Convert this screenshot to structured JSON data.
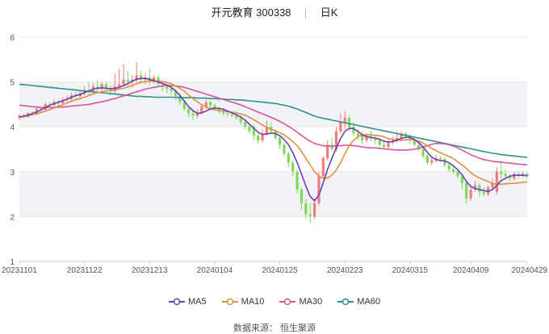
{
  "title_name": "开元教育",
  "title_code": "300338",
  "title_period": "日K",
  "source": "数据来源：  恒生聚源",
  "colors": {
    "up": "#f27b7b",
    "down": "#7ed957",
    "ma5": "#6a3fb8",
    "ma10": "#e09040",
    "ma30": "#d9549a",
    "ma60": "#2f8f8f",
    "band": "#f2f3f7",
    "grid": "#e6e6e6"
  },
  "chart_data": {
    "type": "candlestick",
    "ylim": [
      1,
      6
    ],
    "yticks": [
      "1",
      "2",
      "3",
      "4",
      "5",
      "6"
    ],
    "xticks": [
      "20231101",
      "20231122",
      "20231213",
      "20240104",
      "20240125",
      "20240223",
      "20240315",
      "20240409",
      "20240429"
    ],
    "n_sessions": 118,
    "xtick_index": [
      0,
      15,
      30,
      45,
      60,
      75,
      90,
      104,
      117
    ],
    "legend": [
      "MA5",
      "MA10",
      "MA30",
      "MA60"
    ],
    "candles": [
      [
        4.2,
        4.25,
        4.15,
        4.28
      ],
      [
        4.25,
        4.22,
        4.18,
        4.3
      ],
      [
        4.22,
        4.3,
        4.2,
        4.33
      ],
      [
        4.3,
        4.28,
        4.24,
        4.35
      ],
      [
        4.28,
        4.4,
        4.26,
        4.45
      ],
      [
        4.4,
        4.38,
        4.33,
        4.46
      ],
      [
        4.38,
        4.5,
        4.35,
        4.55
      ],
      [
        4.5,
        4.48,
        4.43,
        4.56
      ],
      [
        4.48,
        4.55,
        4.45,
        4.6
      ],
      [
        4.55,
        4.52,
        4.47,
        4.6
      ],
      [
        4.52,
        4.6,
        4.48,
        4.66
      ],
      [
        4.6,
        4.62,
        4.55,
        4.7
      ],
      [
        4.62,
        4.7,
        4.58,
        4.76
      ],
      [
        4.7,
        4.68,
        4.62,
        4.78
      ],
      [
        4.68,
        4.75,
        4.65,
        4.82
      ],
      [
        4.75,
        4.8,
        4.7,
        4.9
      ],
      [
        4.8,
        4.78,
        4.72,
        4.98
      ],
      [
        4.78,
        4.9,
        4.75,
        4.98
      ],
      [
        4.9,
        4.85,
        4.8,
        5.05
      ],
      [
        4.85,
        4.95,
        4.8,
        5.0
      ],
      [
        4.95,
        4.85,
        4.8,
        5.0
      ],
      [
        4.85,
        4.8,
        4.7,
        4.92
      ],
      [
        4.8,
        4.9,
        4.75,
        5.2
      ],
      [
        4.9,
        4.95,
        4.85,
        5.3
      ],
      [
        4.95,
        5.05,
        4.9,
        5.4
      ],
      [
        5.05,
        5.0,
        4.92,
        5.25
      ],
      [
        5.0,
        5.05,
        4.88,
        5.15
      ],
      [
        5.05,
        5.15,
        5.0,
        5.45
      ],
      [
        5.15,
        5.05,
        4.98,
        5.25
      ],
      [
        5.05,
        5.1,
        4.95,
        5.2
      ],
      [
        5.1,
        5.0,
        4.92,
        5.3
      ],
      [
        5.0,
        5.1,
        4.95,
        5.15
      ],
      [
        5.1,
        4.95,
        4.88,
        5.15
      ],
      [
        4.95,
        4.9,
        4.8,
        5.0
      ],
      [
        4.9,
        4.85,
        4.75,
        4.95
      ],
      [
        4.85,
        4.8,
        4.72,
        4.9
      ],
      [
        4.8,
        4.7,
        4.6,
        4.85
      ],
      [
        4.7,
        4.55,
        4.48,
        4.75
      ],
      [
        4.55,
        4.4,
        4.35,
        4.6
      ],
      [
        4.4,
        4.3,
        4.2,
        4.45
      ],
      [
        4.3,
        4.25,
        4.15,
        4.38
      ],
      [
        4.25,
        4.3,
        4.2,
        4.4
      ],
      [
        4.3,
        4.45,
        4.28,
        4.5
      ],
      [
        4.45,
        4.55,
        4.4,
        4.62
      ],
      [
        4.55,
        4.48,
        4.4,
        4.6
      ],
      [
        4.48,
        4.4,
        4.35,
        4.52
      ],
      [
        4.4,
        4.35,
        4.28,
        4.45
      ],
      [
        4.35,
        4.3,
        4.25,
        4.42
      ],
      [
        4.3,
        4.28,
        4.22,
        4.35
      ],
      [
        4.28,
        4.25,
        4.2,
        4.33
      ],
      [
        4.25,
        4.2,
        4.15,
        4.3
      ],
      [
        4.2,
        4.1,
        4.05,
        4.25
      ],
      [
        4.1,
        4.0,
        3.95,
        4.15
      ],
      [
        4.0,
        3.9,
        3.85,
        4.05
      ],
      [
        4.0,
        3.8,
        3.7,
        4.05
      ],
      [
        3.8,
        3.7,
        3.62,
        3.88
      ],
      [
        3.7,
        3.85,
        3.65,
        3.95
      ],
      [
        3.85,
        4.0,
        3.8,
        4.15
      ],
      [
        4.0,
        3.9,
        3.85,
        4.1
      ],
      [
        3.9,
        3.75,
        3.7,
        3.95
      ],
      [
        3.75,
        3.6,
        3.5,
        3.8
      ],
      [
        3.6,
        3.4,
        3.35,
        3.65
      ],
      [
        3.4,
        3.2,
        3.1,
        3.45
      ],
      [
        3.2,
        3.0,
        2.9,
        3.25
      ],
      [
        3.0,
        2.6,
        2.5,
        3.05
      ],
      [
        2.6,
        2.3,
        2.15,
        2.65
      ],
      [
        2.3,
        2.05,
        1.95,
        2.4
      ],
      [
        2.05,
        2.0,
        1.85,
        2.3
      ],
      [
        2.0,
        2.3,
        1.95,
        2.4
      ],
      [
        2.3,
        2.9,
        2.25,
        3.0
      ],
      [
        2.9,
        3.3,
        2.85,
        3.35
      ],
      [
        3.3,
        3.6,
        3.25,
        3.7
      ],
      [
        3.6,
        3.5,
        3.45,
        3.75
      ],
      [
        3.5,
        3.9,
        3.45,
        4.0
      ],
      [
        3.9,
        4.1,
        3.85,
        4.3
      ],
      [
        4.1,
        4.2,
        3.95,
        4.35
      ],
      [
        4.2,
        4.0,
        3.9,
        4.25
      ],
      [
        4.0,
        3.85,
        3.8,
        4.1
      ],
      [
        3.85,
        3.8,
        3.7,
        3.95
      ],
      [
        3.8,
        3.7,
        3.62,
        3.9
      ],
      [
        3.7,
        3.8,
        3.65,
        3.85
      ],
      [
        3.8,
        3.75,
        3.68,
        3.9
      ],
      [
        3.75,
        3.7,
        3.6,
        3.82
      ],
      [
        3.7,
        3.6,
        3.55,
        3.75
      ],
      [
        3.6,
        3.55,
        3.5,
        3.68
      ],
      [
        3.55,
        3.65,
        3.5,
        3.72
      ],
      [
        3.65,
        3.7,
        3.6,
        3.78
      ],
      [
        3.7,
        3.75,
        3.65,
        3.9
      ],
      [
        3.75,
        3.85,
        3.7,
        3.9
      ],
      [
        3.85,
        3.8,
        3.72,
        3.88
      ],
      [
        3.8,
        3.7,
        3.62,
        3.85
      ],
      [
        3.7,
        3.6,
        3.55,
        3.75
      ],
      [
        3.6,
        3.5,
        3.45,
        3.65
      ],
      [
        3.5,
        3.35,
        3.3,
        3.55
      ],
      [
        3.35,
        3.2,
        3.15,
        3.4
      ],
      [
        3.2,
        3.25,
        3.15,
        3.35
      ],
      [
        3.25,
        3.3,
        3.2,
        3.38
      ],
      [
        3.3,
        3.28,
        3.2,
        3.35
      ],
      [
        3.28,
        3.15,
        3.1,
        3.32
      ],
      [
        3.15,
        3.05,
        3.0,
        3.2
      ],
      [
        3.05,
        3.0,
        2.95,
        3.12
      ],
      [
        3.0,
        2.9,
        2.85,
        3.05
      ],
      [
        2.9,
        2.75,
        2.6,
        2.95
      ],
      [
        2.75,
        2.4,
        2.3,
        2.8
      ],
      [
        2.4,
        2.6,
        2.35,
        2.7
      ],
      [
        2.6,
        2.7,
        2.55,
        2.8
      ],
      [
        2.7,
        2.55,
        2.45,
        2.75
      ],
      [
        2.55,
        2.5,
        2.45,
        2.65
      ],
      [
        2.5,
        2.65,
        2.45,
        2.7
      ],
      [
        2.65,
        2.75,
        2.6,
        2.85
      ],
      [
        2.55,
        3.0,
        2.5,
        3.1
      ],
      [
        3.0,
        2.95,
        2.85,
        3.25
      ],
      [
        2.95,
        2.9,
        2.82,
        3.05
      ],
      [
        2.9,
        2.85,
        2.8,
        2.95
      ],
      [
        2.85,
        2.95,
        2.8,
        3.0
      ],
      [
        2.95,
        2.92,
        2.85,
        3.0
      ],
      [
        2.92,
        2.95,
        2.88,
        3.0
      ],
      [
        2.95,
        2.9,
        2.85,
        2.98
      ]
    ],
    "ma5": [
      4.22,
      4.24,
      4.26,
      4.3,
      4.33,
      4.38,
      4.43,
      4.48,
      4.52,
      4.55,
      4.58,
      4.62,
      4.66,
      4.7,
      4.72,
      4.76,
      4.8,
      4.84,
      4.86,
      4.87,
      4.86,
      4.85,
      4.86,
      4.88,
      4.92,
      4.96,
      5.02,
      5.06,
      5.08,
      5.08,
      5.06,
      5.03,
      5.0,
      4.97,
      4.93,
      4.88,
      4.8,
      4.7,
      4.57,
      4.45,
      4.36,
      4.3,
      4.31,
      4.35,
      4.4,
      4.42,
      4.41,
      4.39,
      4.35,
      4.31,
      4.27,
      4.22,
      4.15,
      4.06,
      3.97,
      3.88,
      3.83,
      3.84,
      3.86,
      3.85,
      3.8,
      3.72,
      3.6,
      3.42,
      3.2,
      2.95,
      2.68,
      2.45,
      2.35,
      2.48,
      2.75,
      3.05,
      3.3,
      3.53,
      3.74,
      3.9,
      3.97,
      3.96,
      3.9,
      3.82,
      3.78,
      3.76,
      3.75,
      3.72,
      3.68,
      3.66,
      3.67,
      3.7,
      3.74,
      3.77,
      3.76,
      3.72,
      3.65,
      3.55,
      3.43,
      3.33,
      3.27,
      3.25,
      3.24,
      3.2,
      3.13,
      3.04,
      2.93,
      2.78,
      2.67,
      2.62,
      2.6,
      2.58,
      2.56,
      2.6,
      2.7,
      2.8,
      2.85,
      2.9,
      2.92,
      2.92,
      2.92,
      2.91
    ],
    "ma10": [
      4.22,
      4.23,
      4.25,
      4.27,
      4.29,
      4.32,
      4.35,
      4.38,
      4.42,
      4.46,
      4.49,
      4.53,
      4.57,
      4.6,
      4.63,
      4.66,
      4.7,
      4.73,
      4.76,
      4.78,
      4.8,
      4.81,
      4.82,
      4.84,
      4.86,
      4.89,
      4.92,
      4.96,
      4.99,
      5.01,
      5.02,
      5.02,
      5.02,
      5.01,
      4.99,
      4.96,
      4.91,
      4.86,
      4.79,
      4.71,
      4.63,
      4.56,
      4.49,
      4.44,
      4.4,
      4.38,
      4.36,
      4.35,
      4.34,
      4.33,
      4.31,
      4.29,
      4.26,
      4.21,
      4.16,
      4.1,
      4.04,
      3.99,
      3.95,
      3.91,
      3.87,
      3.82,
      3.75,
      3.67,
      3.58,
      3.45,
      3.3,
      3.15,
      3.0,
      2.9,
      2.85,
      2.86,
      2.92,
      3.04,
      3.2,
      3.4,
      3.58,
      3.7,
      3.78,
      3.82,
      3.83,
      3.82,
      3.81,
      3.8,
      3.78,
      3.74,
      3.72,
      3.71,
      3.7,
      3.71,
      3.72,
      3.71,
      3.68,
      3.64,
      3.58,
      3.52,
      3.47,
      3.42,
      3.38,
      3.34,
      3.29,
      3.22,
      3.15,
      3.07,
      2.98,
      2.91,
      2.86,
      2.82,
      2.78,
      2.74,
      2.72,
      2.72,
      2.73,
      2.74,
      2.74,
      2.75,
      2.76,
      2.77
    ],
    "ma30": [
      4.48,
      4.47,
      4.46,
      4.45,
      4.44,
      4.43,
      4.43,
      4.43,
      4.43,
      4.44,
      4.44,
      4.45,
      4.46,
      4.47,
      4.48,
      4.49,
      4.5,
      4.52,
      4.54,
      4.56,
      4.58,
      4.61,
      4.63,
      4.66,
      4.69,
      4.72,
      4.75,
      4.78,
      4.81,
      4.84,
      4.86,
      4.88,
      4.9,
      4.91,
      4.92,
      4.92,
      4.91,
      4.9,
      4.88,
      4.85,
      4.82,
      4.79,
      4.76,
      4.73,
      4.7,
      4.67,
      4.64,
      4.61,
      4.58,
      4.55,
      4.52,
      4.49,
      4.45,
      4.41,
      4.37,
      4.33,
      4.29,
      4.25,
      4.21,
      4.17,
      4.12,
      4.07,
      4.01,
      3.95,
      3.88,
      3.81,
      3.74,
      3.68,
      3.63,
      3.6,
      3.58,
      3.57,
      3.57,
      3.58,
      3.58,
      3.59,
      3.59,
      3.58,
      3.57,
      3.55,
      3.54,
      3.53,
      3.53,
      3.52,
      3.51,
      3.5,
      3.49,
      3.48,
      3.48,
      3.48,
      3.49,
      3.5,
      3.52,
      3.55,
      3.58,
      3.61,
      3.63,
      3.63,
      3.62,
      3.6,
      3.57,
      3.53,
      3.48,
      3.43,
      3.38,
      3.34,
      3.3,
      3.27,
      3.25,
      3.23,
      3.22,
      3.21,
      3.2,
      3.19,
      3.18,
      3.17,
      3.16,
      3.15
    ],
    "ma60": [
      4.95,
      4.94,
      4.93,
      4.92,
      4.91,
      4.9,
      4.89,
      4.88,
      4.87,
      4.86,
      4.85,
      4.84,
      4.83,
      4.82,
      4.81,
      4.8,
      4.79,
      4.78,
      4.77,
      4.76,
      4.75,
      4.74,
      4.73,
      4.72,
      4.71,
      4.7,
      4.69,
      4.68,
      4.68,
      4.67,
      4.67,
      4.66,
      4.66,
      4.66,
      4.66,
      4.66,
      4.66,
      4.65,
      4.65,
      4.65,
      4.65,
      4.64,
      4.64,
      4.64,
      4.63,
      4.63,
      4.62,
      4.62,
      4.61,
      4.61,
      4.6,
      4.6,
      4.59,
      4.58,
      4.57,
      4.56,
      4.55,
      4.54,
      4.53,
      4.52,
      4.5,
      4.48,
      4.46,
      4.43,
      4.4,
      4.36,
      4.32,
      4.28,
      4.24,
      4.21,
      4.19,
      4.17,
      4.15,
      4.13,
      4.11,
      4.09,
      4.07,
      4.05,
      4.03,
      4.01,
      3.99,
      3.97,
      3.95,
      3.93,
      3.91,
      3.89,
      3.87,
      3.85,
      3.83,
      3.81,
      3.79,
      3.77,
      3.75,
      3.73,
      3.71,
      3.69,
      3.67,
      3.65,
      3.63,
      3.61,
      3.59,
      3.57,
      3.55,
      3.53,
      3.51,
      3.49,
      3.47,
      3.45,
      3.43,
      3.41,
      3.4,
      3.38,
      3.37,
      3.36,
      3.35,
      3.34,
      3.33,
      3.32
    ]
  }
}
